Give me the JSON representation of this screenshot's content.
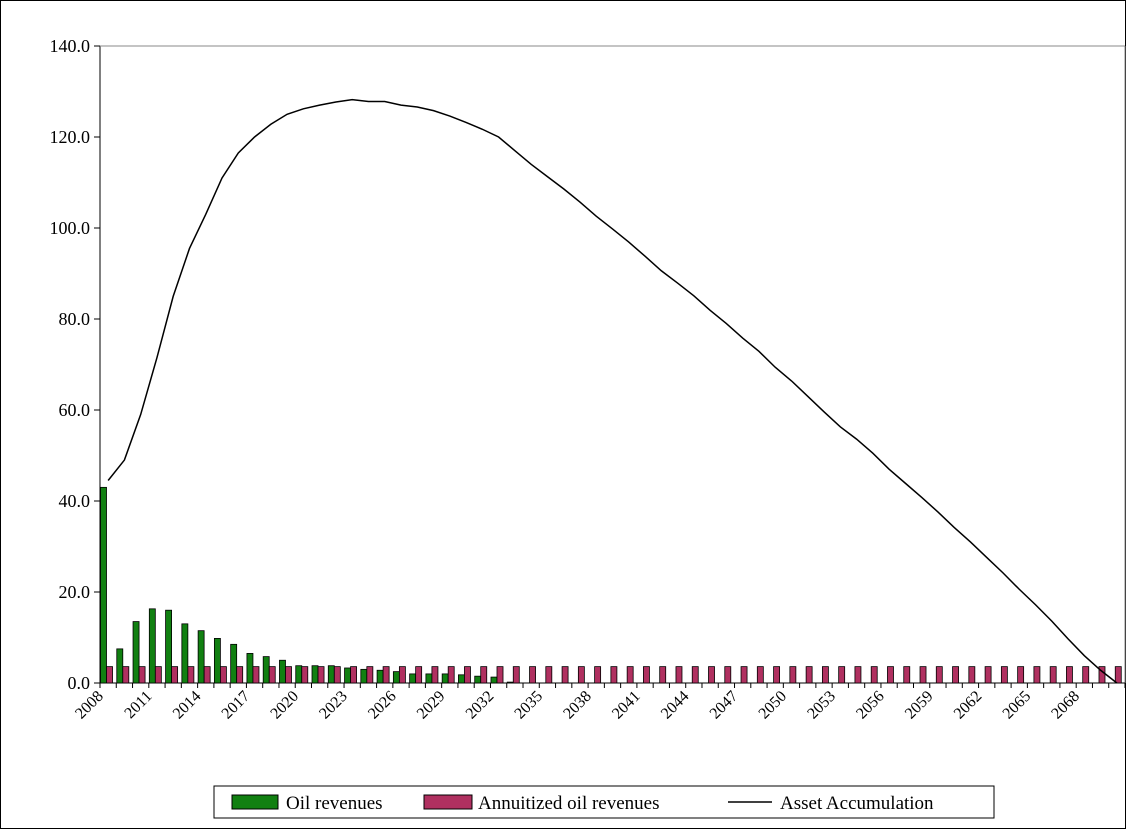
{
  "chart_data": {
    "type": "bar",
    "title": "",
    "xlabel": "",
    "ylabel": "",
    "ylim": [
      0,
      140
    ],
    "yticks": [
      "0.0",
      "20.0",
      "40.0",
      "60.0",
      "80.0",
      "100.0",
      "120.0",
      "140.0"
    ],
    "x_tick_labels": [
      "2008",
      "2011",
      "2014",
      "2017",
      "2020",
      "2023",
      "2026",
      "2029",
      "2032",
      "2035",
      "2038",
      "2041",
      "2044",
      "2047",
      "2050",
      "2053",
      "2056",
      "2059",
      "2062",
      "2065",
      "2068"
    ],
    "x_start": 2008,
    "x_end": 2070,
    "grid": false,
    "legend_position": "bottom",
    "series": [
      {
        "name": "Oil revenues",
        "kind": "bar",
        "color": "#118011",
        "values": [
          43.0,
          7.5,
          13.5,
          16.3,
          16.0,
          13.0,
          11.5,
          9.8,
          8.5,
          6.5,
          5.8,
          5.0,
          3.8,
          3.8,
          3.8,
          3.3,
          3.0,
          2.8,
          2.5,
          2.0,
          2.0,
          2.0,
          1.8,
          1.5,
          1.3,
          0.2,
          0,
          0,
          0,
          0,
          0,
          0,
          0,
          0,
          0,
          0,
          0,
          0,
          0,
          0,
          0,
          0,
          0,
          0,
          0,
          0,
          0,
          0,
          0,
          0,
          0,
          0,
          0,
          0,
          0,
          0,
          0,
          0,
          0,
          0,
          0,
          0,
          0
        ]
      },
      {
        "name": "Annuitized oil revenues",
        "kind": "bar",
        "color": "#b03060",
        "values": [
          3.6,
          3.6,
          3.6,
          3.6,
          3.6,
          3.6,
          3.6,
          3.6,
          3.6,
          3.6,
          3.6,
          3.6,
          3.6,
          3.6,
          3.6,
          3.6,
          3.6,
          3.6,
          3.6,
          3.6,
          3.6,
          3.6,
          3.6,
          3.6,
          3.6,
          3.6,
          3.6,
          3.6,
          3.6,
          3.6,
          3.6,
          3.6,
          3.6,
          3.6,
          3.6,
          3.6,
          3.6,
          3.6,
          3.6,
          3.6,
          3.6,
          3.6,
          3.6,
          3.6,
          3.6,
          3.6,
          3.6,
          3.6,
          3.6,
          3.6,
          3.6,
          3.6,
          3.6,
          3.6,
          3.6,
          3.6,
          3.6,
          3.6,
          3.6,
          3.6,
          3.6,
          3.6,
          3.6
        ]
      },
      {
        "name": "Asset Accumulation",
        "kind": "line",
        "color": "#000000",
        "values": [
          44.5,
          49.0,
          59.0,
          71.5,
          85.0,
          95.5,
          103.0,
          111.0,
          116.5,
          120.0,
          122.8,
          125.0,
          126.2,
          127.0,
          127.7,
          128.2,
          127.8,
          127.8,
          127.0,
          126.6,
          125.8,
          124.6,
          123.2,
          121.7,
          120.0,
          117.0,
          114.0,
          111.3,
          108.6,
          105.7,
          102.6,
          99.8,
          96.9,
          93.8,
          90.6,
          87.9,
          85.1,
          81.9,
          79.0,
          75.8,
          72.9,
          69.4,
          66.4,
          63.0,
          59.6,
          56.3,
          53.6,
          50.5,
          47.0,
          43.9,
          40.8,
          37.6,
          34.2,
          31.0,
          27.6,
          24.2,
          20.6,
          17.2,
          13.6,
          9.7,
          6.0,
          2.8,
          0.0
        ]
      }
    ]
  }
}
